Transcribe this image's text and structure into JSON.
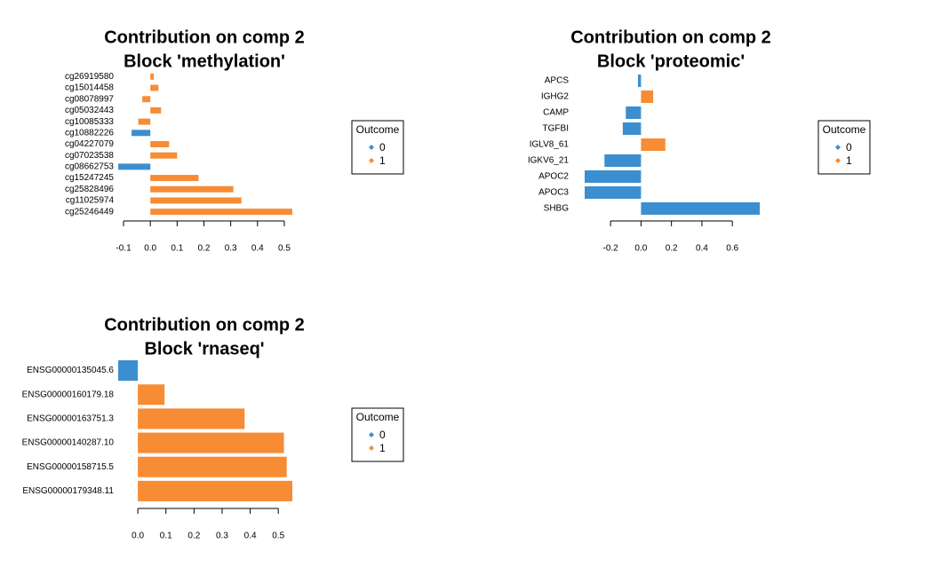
{
  "chart_data": [
    {
      "type": "barh",
      "title": "Contribution on comp 2",
      "subtitle": "Block 'methylation'",
      "categories": [
        "cg26919580",
        "cg15014458",
        "cg08078997",
        "cg05032443",
        "cg10085333",
        "cg10882226",
        "cg04227079",
        "cg07023538",
        "cg08662753",
        "cg15247245",
        "cg25828496",
        "cg11025974",
        "cg25246449"
      ],
      "values": [
        0.013,
        0.03,
        -0.03,
        0.04,
        -0.045,
        -0.07,
        0.07,
        0.1,
        -0.12,
        0.18,
        0.31,
        0.34,
        0.53
      ],
      "outcome": [
        "1",
        "1",
        "1",
        "1",
        "1",
        "0",
        "1",
        "1",
        "0",
        "1",
        "1",
        "1",
        "1"
      ],
      "xlim": [
        -0.12,
        0.53
      ],
      "xticks": [
        -0.1,
        {
          "value": 0,
          "label": "0.0"
        },
        0.1,
        0.2,
        0.3,
        0.4,
        0.5
      ],
      "legend_title": "Outcome",
      "groups": [
        "0",
        "1"
      ],
      "group_colors": [
        "#3b8fd0",
        "#f78c35"
      ]
    },
    {
      "type": "barh",
      "title": "Contribution on comp 2",
      "subtitle": "Block 'proteomic'",
      "categories": [
        "APCS",
        "IGHG2",
        "CAMP",
        "TGFBI",
        "IGLV8_61",
        "IGKV6_21",
        "APOC2",
        "APOC3",
        "SHBG"
      ],
      "values": [
        -0.02,
        0.08,
        -0.1,
        -0.12,
        0.16,
        -0.24,
        -0.37,
        -0.37,
        0.78
      ],
      "outcome": [
        "0",
        "1",
        "0",
        "0",
        "1",
        "0",
        "0",
        "0",
        "0"
      ],
      "xlim": [
        -0.37,
        0.78
      ],
      "xticks": [
        -0.2,
        {
          "value": 0,
          "label": "0.0"
        },
        0.2,
        0.4,
        0.6
      ],
      "legend_title": "Outcome",
      "groups": [
        "0",
        "1"
      ],
      "group_colors": [
        "#3b8fd0",
        "#f78c35"
      ]
    },
    {
      "type": "barh",
      "title": "Contribution on comp 2",
      "subtitle": "Block 'rnaseq'",
      "categories": [
        "ENSG00000135045.6",
        "ENSG00000160179.18",
        "ENSG00000163751.3",
        "ENSG00000140287.10",
        "ENSG00000158715.5",
        "ENSG00000179348.11"
      ],
      "values": [
        -0.07,
        0.095,
        0.38,
        0.52,
        0.53,
        0.55
      ],
      "outcome": [
        "0",
        "1",
        "1",
        "1",
        "1",
        "1"
      ],
      "xlim": [
        -0.07,
        0.55
      ],
      "xticks": [
        {
          "value": 0,
          "label": "0.0"
        },
        0.1,
        0.2,
        0.3,
        0.4,
        0.5
      ],
      "legend_title": "Outcome",
      "groups": [
        "0",
        "1"
      ],
      "group_colors": [
        "#3b8fd0",
        "#f78c35"
      ]
    }
  ]
}
